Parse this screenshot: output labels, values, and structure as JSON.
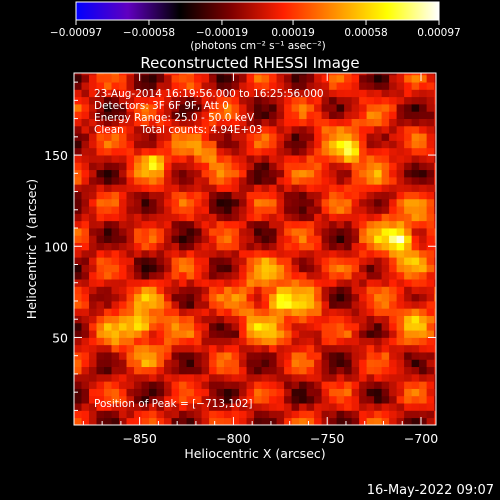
{
  "chart_data": {
    "type": "heatmap",
    "title": "Reconstructed RHESSI Image",
    "xlabel": "Heliocentric X (arcsec)",
    "ylabel": "Heliocentric Y (arcsec)",
    "xlim": [
      -885,
      -692
    ],
    "ylim": [
      2,
      195
    ],
    "x_ticks": [
      -850,
      -800,
      -750,
      -700
    ],
    "x_tick_labels": [
      "−850",
      "−800",
      "−750",
      "−700"
    ],
    "y_ticks": [
      50,
      100,
      150
    ],
    "y_tick_labels": [
      "50",
      "100",
      "150"
    ],
    "colorbar": {
      "min": -0.00097,
      "max": 0.00097,
      "ticks": [
        -0.00097,
        -0.00058,
        -0.00019,
        0.00019,
        0.00058,
        0.00097
      ],
      "tick_labels": [
        "−0.00097",
        "−0.00058",
        "−0.00019",
        "0.00019",
        "0.00058",
        "0.00097"
      ],
      "units_label": "(photons cm⁻² s⁻¹ asec⁻²)",
      "colors": [
        "#0000ff",
        "#6000c0",
        "#000000",
        "#800000",
        "#ff2000",
        "#ff9000",
        "#ffff00",
        "#ffffff"
      ]
    },
    "annotations": [
      "23-Aug-2014 16:19:56.000 to 16:25:56.000",
      "Detectors: 3F 6F 9F, Att 0",
      "Energy Range: 25.0 - 50.0 keV",
      "Clean     Total counts: 4.94E+03"
    ],
    "peak_label": "Position of Peak = [−713,102]",
    "peak_position": [
      -713,
      102
    ],
    "grid": false,
    "sources": [
      {
        "x": -852,
        "y": 55,
        "sigma": 11,
        "amp": 0.00085
      },
      {
        "x": -778,
        "y": 68,
        "sigma": 14,
        "amp": 0.00075
      },
      {
        "x": -713,
        "y": 102,
        "sigma": 10,
        "amp": 0.00097
      },
      {
        "x": -740,
        "y": 150,
        "sigma": 12,
        "amp": 0.0006
      },
      {
        "x": -845,
        "y": 145,
        "sigma": 9,
        "amp": 0.0005
      },
      {
        "x": -815,
        "y": 150,
        "sigma": 9,
        "amp": 0.00045
      },
      {
        "x": -705,
        "y": 60,
        "sigma": 10,
        "amp": 0.00055
      }
    ]
  },
  "footer_date": "16-May-2022 09:07"
}
